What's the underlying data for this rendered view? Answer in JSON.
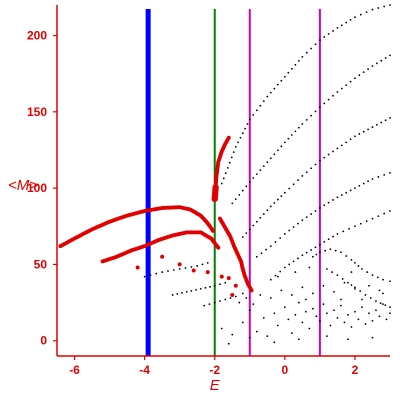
{
  "chart_data": {
    "type": "scatter",
    "xlabel": "E",
    "ylabel": "<M>",
    "xlim": [
      -6.5,
      3.0
    ],
    "ylim": [
      -10,
      220
    ],
    "grid": false,
    "x_ticks": [
      -6,
      -4,
      -2,
      0,
      2
    ],
    "y_ticks": [
      0,
      50,
      100,
      150,
      200
    ],
    "colors": {
      "axes": "#e00000",
      "ticks": "#e00000",
      "red_series": "#e00000",
      "black_series": "#000000"
    },
    "vlines": [
      {
        "x": -3.9,
        "color": "#0000ff"
      },
      {
        "x": -2.0,
        "color": "#008000"
      },
      {
        "x": -1.0,
        "color": "#cc00cc"
      },
      {
        "x": 1.0,
        "color": "#cc00cc"
      }
    ],
    "series": [
      {
        "color": "#e00000",
        "marker": "large-dot",
        "curves": [
          [
            [
              -6.4,
              62
            ],
            [
              -6.0,
              67
            ],
            [
              -5.5,
              73
            ],
            [
              -5.0,
              78
            ],
            [
              -4.5,
              82
            ],
            [
              -4.0,
              85
            ],
            [
              -3.5,
              87
            ],
            [
              -3.0,
              87.5
            ],
            [
              -2.7,
              86
            ],
            [
              -2.4,
              82
            ],
            [
              -2.2,
              77
            ],
            [
              -2.05,
              72
            ]
          ],
          [
            [
              -5.2,
              52
            ],
            [
              -4.8,
              55
            ],
            [
              -4.4,
              59
            ],
            [
              -4.0,
              62
            ],
            [
              -3.6,
              66
            ],
            [
              -3.2,
              69
            ],
            [
              -2.8,
              71
            ],
            [
              -2.4,
              71
            ],
            [
              -2.1,
              67
            ],
            [
              -1.9,
              61
            ]
          ],
          [
            [
              -2.0,
              93
            ],
            [
              -1.95,
              108
            ],
            [
              -1.9,
              117
            ],
            [
              -1.8,
              124
            ],
            [
              -1.7,
              129
            ],
            [
              -1.6,
              133
            ]
          ],
          [
            [
              -1.85,
              80
            ],
            [
              -1.7,
              74
            ],
            [
              -1.55,
              68
            ],
            [
              -1.45,
              62
            ],
            [
              -1.35,
              57
            ],
            [
              -1.25,
              52
            ],
            [
              -1.2,
              47
            ],
            [
              -1.15,
              43
            ],
            [
              -1.05,
              37
            ],
            [
              -0.95,
              33
            ]
          ]
        ],
        "points": [
          [
            -4.2,
            48
          ],
          [
            -3.5,
            55
          ],
          [
            -3.0,
            50
          ],
          [
            -2.6,
            46
          ],
          [
            -2.2,
            45
          ],
          [
            -1.8,
            42
          ],
          [
            -1.6,
            41
          ],
          [
            -1.5,
            30
          ],
          [
            -1.4,
            36
          ]
        ]
      },
      {
        "color": "#000000",
        "marker": "small-dot",
        "curves": [
          [
            [
              -1.8,
              103
            ],
            [
              -1.4,
              127
            ],
            [
              -1.0,
              145
            ],
            [
              -0.5,
              160
            ],
            [
              0.0,
              173
            ],
            [
              0.5,
              186
            ],
            [
              1.0,
              197
            ],
            [
              1.5,
              205
            ],
            [
              2.0,
              212
            ],
            [
              2.5,
              217
            ],
            [
              3.0,
              220
            ]
          ],
          [
            [
              -1.5,
              90
            ],
            [
              -1.0,
              104
            ],
            [
              -0.5,
              117
            ],
            [
              0.0,
              130
            ],
            [
              0.5,
              142
            ],
            [
              1.0,
              153
            ],
            [
              1.5,
              163
            ],
            [
              2.0,
              172
            ],
            [
              2.5,
              180
            ],
            [
              3.0,
              187
            ]
          ],
          [
            [
              -1.2,
              68
            ],
            [
              -0.8,
              78
            ],
            [
              -0.4,
              88
            ],
            [
              0.0,
              97
            ],
            [
              0.5,
              108
            ],
            [
              1.0,
              118
            ],
            [
              1.5,
              126
            ],
            [
              2.0,
              134
            ],
            [
              2.5,
              140
            ],
            [
              3.0,
              146
            ]
          ],
          [
            [
              -0.8,
              55
            ],
            [
              -0.4,
              62
            ],
            [
              0.0,
              70
            ],
            [
              0.5,
              79
            ],
            [
              1.0,
              87
            ],
            [
              1.5,
              94
            ],
            [
              2.0,
              100
            ],
            [
              2.5,
              106
            ],
            [
              3.0,
              110
            ]
          ],
          [
            [
              -0.4,
              40
            ],
            [
              0.0,
              48
            ],
            [
              0.5,
              56
            ],
            [
              1.0,
              63
            ],
            [
              1.5,
              70
            ],
            [
              2.0,
              75
            ],
            [
              2.5,
              80
            ],
            [
              3.0,
              85
            ]
          ],
          [
            [
              -4.0,
              42
            ],
            [
              -3.5,
              45
            ],
            [
              -3.0,
              47
            ],
            [
              -2.5,
              49
            ],
            [
              -2.2,
              51
            ]
          ],
          [
            [
              -3.2,
              30
            ],
            [
              -2.8,
              32
            ],
            [
              -2.4,
              34
            ],
            [
              -2.0,
              36
            ],
            [
              -1.7,
              38
            ]
          ],
          [
            [
              -2.3,
              23
            ],
            [
              -2.0,
              25
            ],
            [
              -1.7,
              27
            ],
            [
              -1.4,
              29
            ],
            [
              -1.2,
              31
            ]
          ],
          [
            [
              0.8,
              55
            ],
            [
              1.0,
              58
            ],
            [
              1.3,
              60
            ],
            [
              1.6,
              58
            ],
            [
              1.9,
              53
            ],
            [
              2.2,
              47
            ],
            [
              2.5,
              43
            ],
            [
              2.8,
              40
            ],
            [
              3.0,
              39
            ]
          ],
          [
            [
              1.2,
              47
            ],
            [
              1.5,
              43
            ],
            [
              1.8,
              38
            ],
            [
              2.0,
              35
            ],
            [
              2.3,
              30
            ],
            [
              2.6,
              26
            ],
            [
              3.0,
              22
            ]
          ]
        ],
        "points": [
          [
            -1.8,
            8
          ],
          [
            -1.5,
            4
          ],
          [
            -1.2,
            12
          ],
          [
            -1.0,
            20
          ],
          [
            -0.8,
            6
          ],
          [
            -0.6,
            15
          ],
          [
            -0.5,
            3
          ],
          [
            -0.3,
            18
          ],
          [
            -0.2,
            10
          ],
          [
            0.0,
            22
          ],
          [
            0.1,
            14
          ],
          [
            0.2,
            5
          ],
          [
            0.3,
            17
          ],
          [
            0.4,
            25
          ],
          [
            0.5,
            12
          ],
          [
            0.6,
            19
          ],
          [
            0.7,
            8
          ],
          [
            0.8,
            21
          ],
          [
            0.9,
            16
          ],
          [
            1.0,
            13
          ],
          [
            1.1,
            24
          ],
          [
            1.2,
            18
          ],
          [
            1.3,
            10
          ],
          [
            1.4,
            20
          ],
          [
            1.5,
            15
          ],
          [
            1.6,
            23
          ],
          [
            1.7,
            12
          ],
          [
            1.8,
            17
          ],
          [
            1.9,
            9
          ],
          [
            2.0,
            19
          ],
          [
            2.1,
            14
          ],
          [
            2.2,
            22
          ],
          [
            2.3,
            11
          ],
          [
            2.4,
            18
          ],
          [
            2.5,
            13
          ],
          [
            2.6,
            20
          ],
          [
            2.7,
            16
          ],
          [
            2.8,
            24
          ],
          [
            2.9,
            14
          ],
          [
            3.0,
            18
          ],
          [
            -1.3,
            25
          ],
          [
            -1.1,
            28
          ],
          [
            -0.9,
            24
          ],
          [
            -0.7,
            30
          ],
          [
            -0.4,
            28
          ],
          [
            -0.1,
            33
          ],
          [
            0.2,
            30
          ],
          [
            0.5,
            35
          ],
          [
            0.8,
            31
          ],
          [
            1.1,
            36
          ],
          [
            1.4,
            32
          ],
          [
            1.7,
            38
          ],
          [
            2.0,
            34
          ],
          [
            2.4,
            36
          ],
          [
            2.8,
            31
          ],
          [
            -0.2,
            42
          ],
          [
            0.3,
            45
          ],
          [
            0.7,
            48
          ],
          [
            1.9,
            45
          ],
          [
            2.7,
            33
          ],
          [
            -1.6,
            -2
          ],
          [
            -1.0,
            2
          ],
          [
            -0.3,
            -1
          ],
          [
            0.4,
            1
          ],
          [
            1.2,
            3
          ],
          [
            1.8,
            1
          ],
          [
            2.5,
            2
          ],
          [
            0.6,
            27
          ],
          [
            1.6,
            27
          ],
          [
            2.2,
            27
          ]
        ]
      }
    ]
  }
}
